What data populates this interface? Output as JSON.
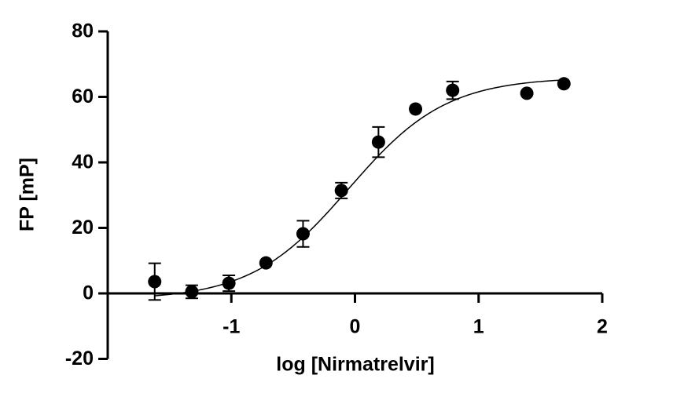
{
  "chart_data": {
    "type": "scatter",
    "xlabel": "log [Nirmatrelvir]",
    "ylabel": "FP [mP]",
    "x": [
      -1.62,
      -1.32,
      -1.02,
      -0.72,
      -0.42,
      -0.11,
      0.19,
      0.49,
      0.79,
      1.39,
      1.69
    ],
    "values": [
      3.6,
      0.5,
      3.1,
      9.3,
      18.2,
      31.4,
      46.2,
      56.3,
      62.0,
      61.1,
      64.0
    ],
    "errors": [
      5.6,
      2.0,
      2.4,
      null,
      4.0,
      2.4,
      4.6,
      null,
      2.7,
      null,
      null
    ],
    "color": "#000000",
    "fit": {
      "bottom": -2,
      "top": 66,
      "log_ec50": -0.05,
      "hill": 1.1,
      "range": [
        -1.62,
        1.69
      ]
    },
    "xlim": [
      -2,
      2
    ],
    "xticks": [
      -1,
      0,
      1,
      2
    ],
    "ylim": [
      -20,
      80
    ],
    "yticks": [
      -20,
      0,
      20,
      40,
      60,
      80
    ],
    "grid": false
  }
}
